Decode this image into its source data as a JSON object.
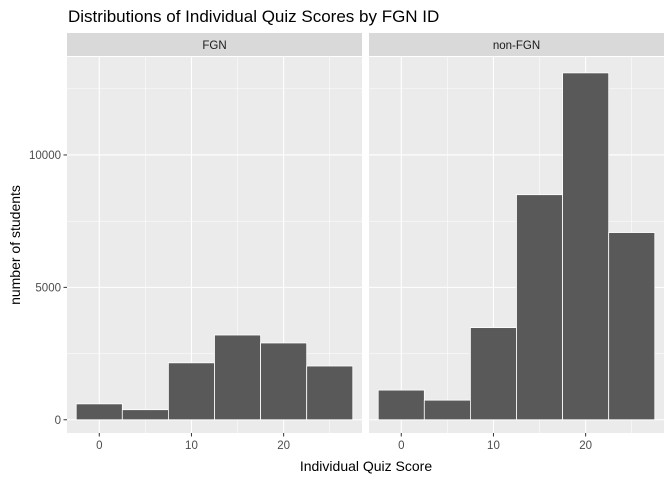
{
  "chart_data": {
    "type": "bar",
    "title": "Distributions of Individual Quiz Scores by FGN ID",
    "xlabel": "Individual Quiz Score",
    "ylabel": "number of students",
    "xlim": [
      -3.5,
      28.5
    ],
    "ylim": [
      -500,
      13700
    ],
    "x_ticks": [
      0,
      10,
      20
    ],
    "y_ticks": [
      0,
      5000,
      10000
    ],
    "bin_width": 5,
    "grid": true,
    "colors": {
      "panel_bg": "#ebebeb",
      "strip_bg": "#d9d9d9",
      "grid": "#ffffff",
      "bar_fill": "#595959",
      "bar_outline": "#ffffff",
      "tick": "#333333"
    },
    "panels": [
      {
        "strip": "FGN",
        "bins": [
          {
            "x0": -2.5,
            "x1": 2.5,
            "count": 600
          },
          {
            "x0": 2.5,
            "x1": 7.5,
            "count": 380
          },
          {
            "x0": 7.5,
            "x1": 12.5,
            "count": 2150
          },
          {
            "x0": 12.5,
            "x1": 17.5,
            "count": 3200
          },
          {
            "x0": 17.5,
            "x1": 22.5,
            "count": 2900
          },
          {
            "x0": 22.5,
            "x1": 27.5,
            "count": 2030
          }
        ]
      },
      {
        "strip": "non-FGN",
        "bins": [
          {
            "x0": -2.5,
            "x1": 2.5,
            "count": 1120
          },
          {
            "x0": 2.5,
            "x1": 7.5,
            "count": 740
          },
          {
            "x0": 7.5,
            "x1": 12.5,
            "count": 3480
          },
          {
            "x0": 12.5,
            "x1": 17.5,
            "count": 8500
          },
          {
            "x0": 17.5,
            "x1": 22.5,
            "count": 13100
          },
          {
            "x0": 22.5,
            "x1": 27.5,
            "count": 7070
          }
        ]
      }
    ]
  }
}
